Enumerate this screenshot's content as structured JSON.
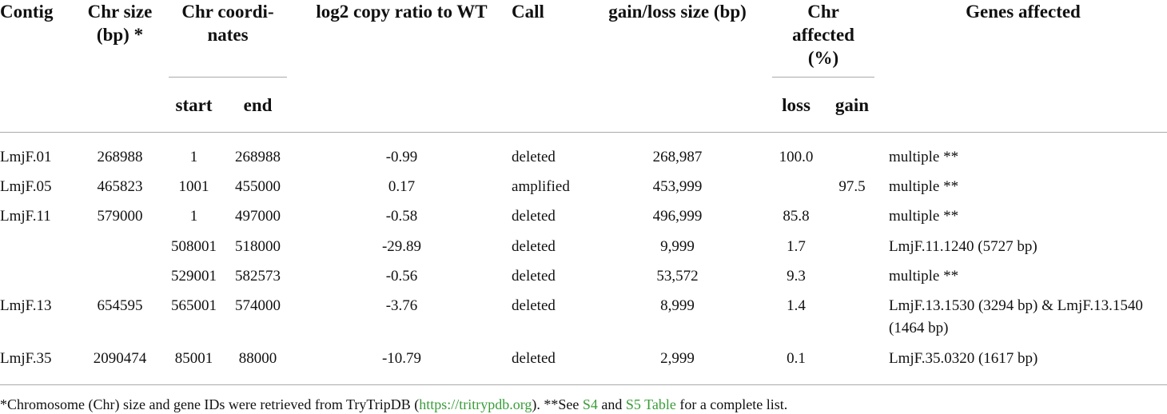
{
  "table": {
    "headers": [
      [
        "Contig"
      ],
      [
        "Chr size",
        "(bp) *"
      ],
      [
        "Chr coordi-",
        "nates"
      ],
      [
        "log2 copy ratio to WT"
      ],
      [
        "Call"
      ],
      [
        "gain/loss size (bp)"
      ],
      [
        "Chr",
        "affected",
        "(%)"
      ],
      [
        "Genes affected"
      ]
    ],
    "subheaders": [
      "start",
      "end",
      "loss",
      "gain"
    ],
    "rows": [
      [
        "LmjF.01",
        "268988",
        "1",
        "268988",
        "-0.99",
        "deleted",
        "268,987",
        "100.0",
        null,
        "multiple **"
      ],
      [
        "LmjF.05",
        "465823",
        "1001",
        "455000",
        "0.17",
        "amplified",
        "453,999",
        null,
        "97.5",
        "multiple **"
      ],
      [
        "LmjF.11",
        "579000",
        "1",
        "497000",
        "-0.58",
        "deleted",
        "496,999",
        "85.8",
        null,
        "multiple **"
      ],
      [
        null,
        null,
        "508001",
        "518000",
        "-29.89",
        "deleted",
        "9,999",
        "1.7",
        null,
        "LmjF.11.1240 (5727 bp)"
      ],
      [
        null,
        null,
        "529001",
        "582573",
        "-0.56",
        "deleted",
        "53,572",
        "9.3",
        null,
        "multiple **"
      ],
      [
        "LmjF.13",
        "654595",
        "565001",
        "574000",
        "-3.76",
        "deleted",
        "8,999",
        "1.4",
        null,
        "LmjF.13.1530 (3294 bp) & LmjF.13.1540 (1464 bp)"
      ],
      [
        "LmjF.35",
        "2090474",
        "85001",
        "88000",
        "-10.79",
        "deleted",
        "2,999",
        "0.1",
        null,
        "LmjF.35.0320 (1617 bp)"
      ]
    ]
  },
  "footnote": [
    "*Chromosome (Chr) size and gene IDs were retrieved from TryTripDB (",
    "https://tritrypdb.org",
    "). **See ",
    "S4",
    " and ",
    "S5 Table",
    " for a complete list."
  ]
}
